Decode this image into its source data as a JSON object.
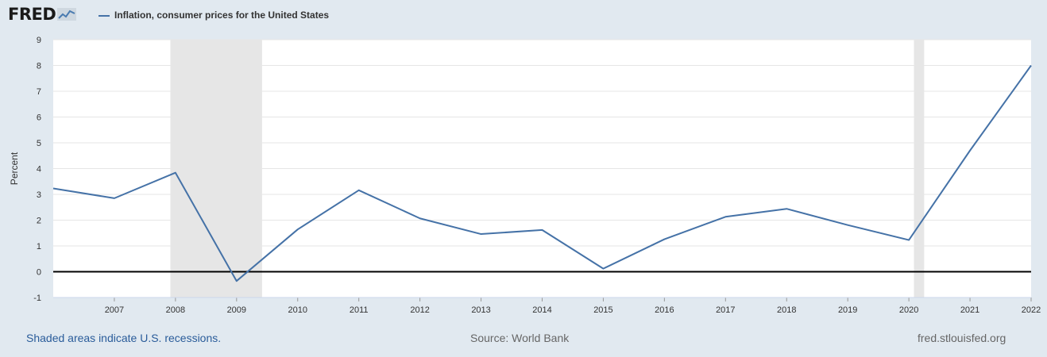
{
  "header": {
    "logo": "FRED",
    "legend_label": "Inflation, consumer prices for the United States"
  },
  "footer": {
    "recession_note": "Shaded areas indicate U.S. recessions.",
    "source": "Source: World Bank",
    "site": "fred.stlouisfed.org"
  },
  "colors": {
    "line": "#4572a7",
    "recession": "#e6e6e6",
    "background": "#e1e9f0"
  },
  "chart_data": {
    "type": "line",
    "ylabel": "Percent",
    "xlabel": "",
    "xlim": [
      2006,
      2022
    ],
    "ylim": [
      -1,
      9
    ],
    "yticks": [
      -1,
      0,
      1,
      2,
      3,
      4,
      5,
      6,
      7,
      8,
      9
    ],
    "xticks": [
      "2007",
      "2008",
      "2009",
      "2010",
      "2011",
      "2012",
      "2013",
      "2014",
      "2015",
      "2016",
      "2017",
      "2018",
      "2019",
      "2020",
      "2021",
      "2022"
    ],
    "grid": true,
    "series": [
      {
        "name": "Inflation, consumer prices for the United States",
        "x": [
          2006,
          2007,
          2008,
          2009,
          2010,
          2011,
          2012,
          2013,
          2014,
          2015,
          2016,
          2017,
          2018,
          2019,
          2020,
          2021,
          2022
        ],
        "y": [
          3.23,
          2.85,
          3.84,
          -0.36,
          1.64,
          3.16,
          2.07,
          1.46,
          1.62,
          0.12,
          1.26,
          2.13,
          2.44,
          1.81,
          1.23,
          4.7,
          8.0
        ]
      }
    ],
    "recessions": [
      [
        "2007-12",
        "2009-06"
      ],
      [
        "2020-02",
        "2020-04"
      ]
    ]
  }
}
